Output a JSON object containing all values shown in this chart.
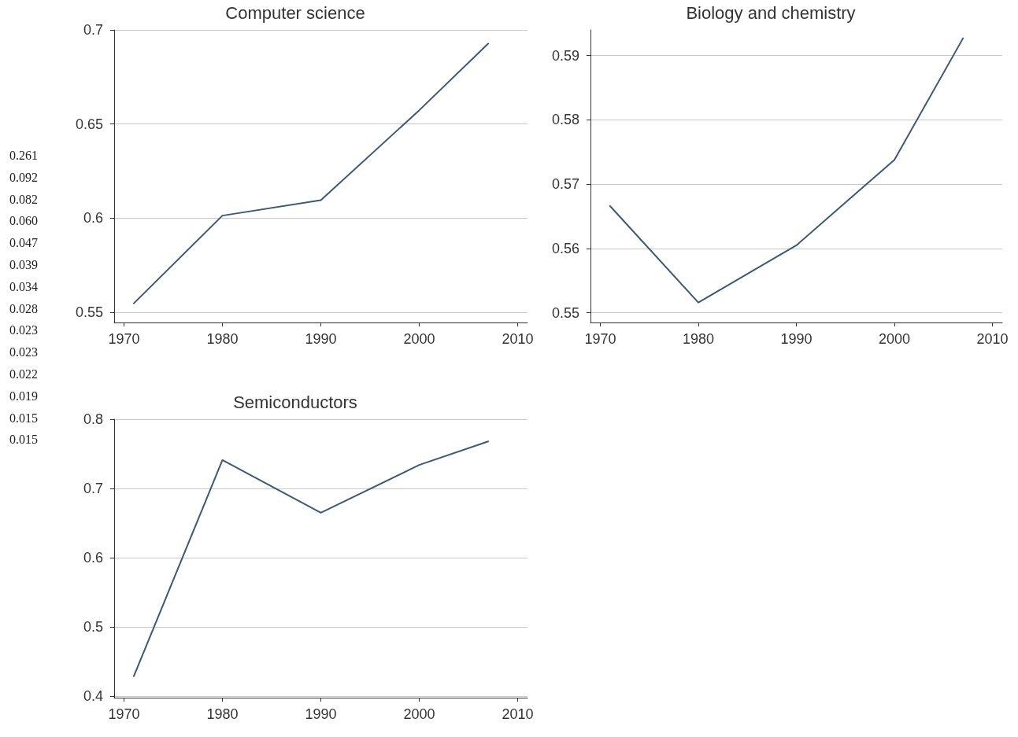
{
  "chart_data": [
    {
      "type": "line",
      "title": "Computer science",
      "x": [
        1971,
        1980,
        1990,
        2000,
        2007
      ],
      "series": [
        {
          "color": "#3b5878",
          "values": [
            0.5547,
            0.6013,
            0.6095,
            0.6573,
            0.6927
          ]
        }
      ],
      "xlim": [
        1969,
        2011
      ],
      "xticks": [
        1970,
        1980,
        1990,
        2000,
        2010
      ],
      "ylim": [
        0.5445,
        0.7
      ],
      "yticks": [
        0.55,
        0.6,
        0.65,
        0.7
      ],
      "grid": "y",
      "marker": "none",
      "line_style": "solid",
      "annotations": [
        "0.261",
        "0.092",
        "0.082",
        "0.060",
        "0.047",
        "0.039",
        "0.034",
        "0.028",
        "0.023",
        "0.023",
        "0.022",
        "0.019",
        "0.015",
        "0.015"
      ]
    },
    {
      "type": "line",
      "title": "Biology and chemistry",
      "x": [
        1971,
        1980,
        1990,
        2000,
        2007
      ],
      "series": [
        {
          "color": "#3b5878",
          "values": [
            0.5666,
            0.5516,
            0.5605,
            0.5738,
            0.5927
          ]
        }
      ],
      "xlim": [
        1969,
        2011
      ],
      "xticks": [
        1970,
        1980,
        1990,
        2000,
        2010
      ],
      "ylim": [
        0.5485,
        0.594
      ],
      "yticks": [
        0.55,
        0.56,
        0.57,
        0.58,
        0.59
      ],
      "grid": "y",
      "marker": "none",
      "line_style": "solid"
    },
    {
      "type": "line",
      "title": "Semiconductors",
      "x": [
        1971,
        1980,
        1990,
        2000,
        2007
      ],
      "series": [
        {
          "color": "#3b5878",
          "values": [
            0.429,
            0.741,
            0.665,
            0.734,
            0.768
          ]
        }
      ],
      "xlim": [
        1969,
        2011
      ],
      "xticks": [
        1970,
        1980,
        1990,
        2000,
        2010
      ],
      "ylim": [
        0.398,
        0.8
      ],
      "yticks": [
        0.4,
        0.5,
        0.6,
        0.7,
        0.8
      ],
      "grid": "y",
      "marker": "none",
      "line_style": "solid"
    }
  ]
}
